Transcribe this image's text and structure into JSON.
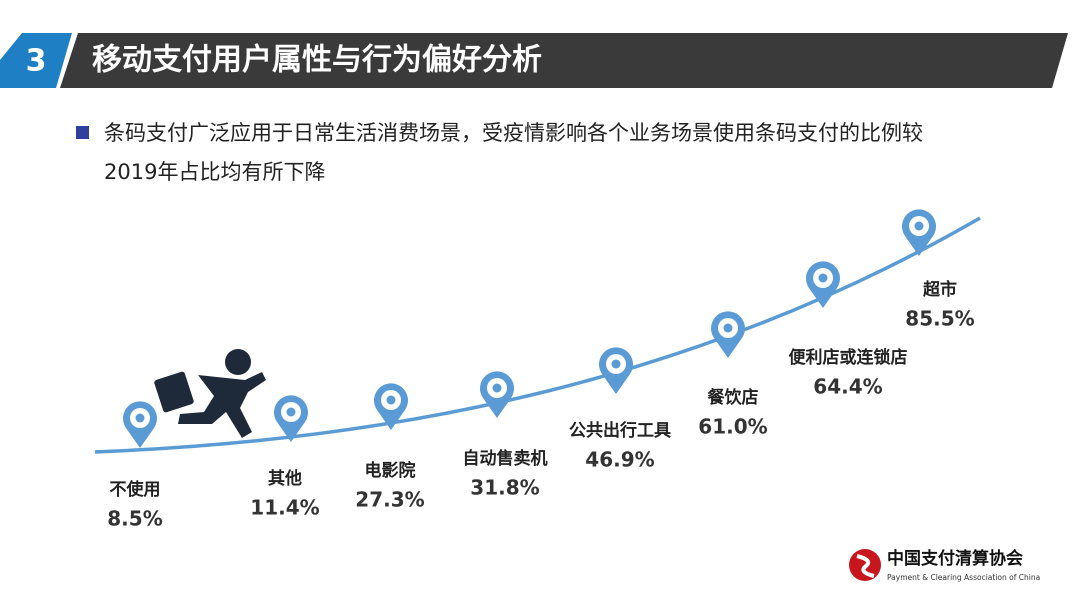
{
  "header": {
    "number": "3",
    "title": "移动支付用户属性与行为偏好分析"
  },
  "bullet": {
    "lines": [
      "条码支付广泛应用于日常生活消费场景，受疫情影响各个业务场景使用条码支付的比例较",
      "2019年占比均有所下降"
    ]
  },
  "items": [
    {
      "label": "不使用",
      "value": "8.5%"
    },
    {
      "label": "其他",
      "value": "11.4%"
    },
    {
      "label": "电影院",
      "value": "27.3%"
    },
    {
      "label": "自动售卖机",
      "value": "31.8%"
    },
    {
      "label": "公共出行工具",
      "value": "46.9%"
    },
    {
      "label": "餐饮店",
      "value": "61.0%"
    },
    {
      "label": "便利店或连锁店",
      "value": "64.4%"
    },
    {
      "label": "超市",
      "value": "85.5%"
    }
  ],
  "logo": {
    "name": "中国支付清算协会",
    "subtitle": "Payment & Clearing Association of China"
  }
}
